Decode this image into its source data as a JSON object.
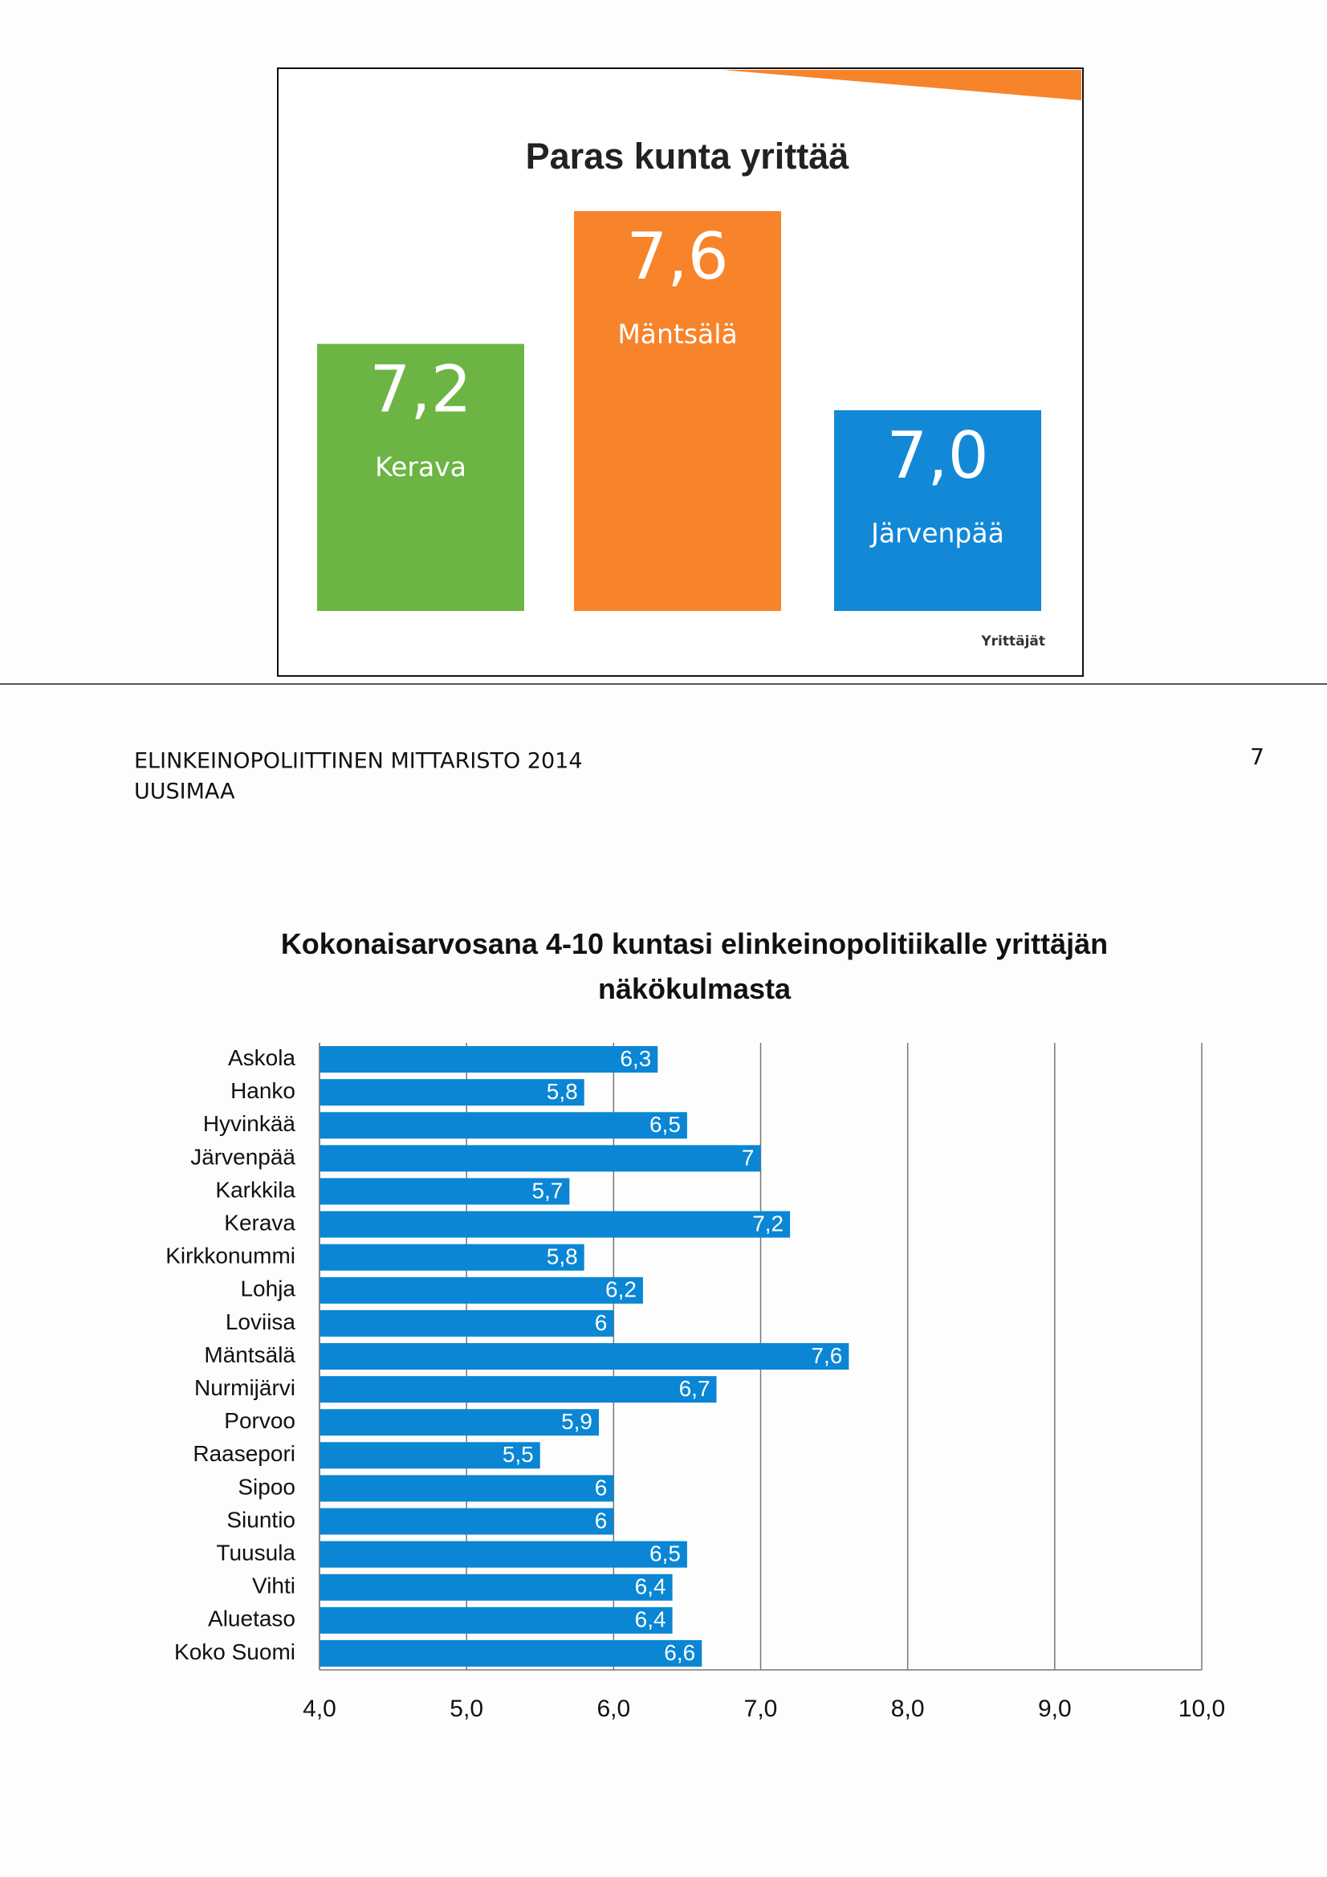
{
  "header": {
    "title": "ELINKEINOPOLIITTINEN MITTARISTO 2014",
    "subtitle": "UUSIMAA",
    "page": "7"
  },
  "logo": "Yrittäjät",
  "chart_data": [
    {
      "type": "bar",
      "title": "Paras kunta yrittää",
      "categories": [
        "Kerava",
        "Mäntsälä",
        "Järvenpää"
      ],
      "values": [
        7.2,
        7.6,
        7.0
      ],
      "value_labels": [
        "7,2",
        "7,6",
        "7,0"
      ],
      "colors": [
        "#6cb545",
        "#f7842b",
        "#1388d6"
      ]
    },
    {
      "type": "bar",
      "orientation": "horizontal",
      "title": "Kokonaisarvosana 4-10 kuntasi elinkeinopolitiikalle yrittäjän näkökulmasta",
      "categories": [
        "Askola",
        "Hanko",
        "Hyvinkää",
        "Järvenpää",
        "Karkkila",
        "Kerava",
        "Kirkkonummi",
        "Lohja",
        "Loviisa",
        "Mäntsälä",
        "Nurmijärvi",
        "Porvoo",
        "Raasepori",
        "Sipoo",
        "Siuntio",
        "Tuusula",
        "Vihti",
        "Aluetaso",
        "Koko Suomi"
      ],
      "values": [
        6.3,
        5.8,
        6.5,
        7,
        5.7,
        7.2,
        5.8,
        6.2,
        6,
        7.6,
        6.7,
        5.9,
        5.5,
        6,
        6,
        6.5,
        6.4,
        6.4,
        6.6
      ],
      "value_labels": [
        "6,3",
        "5,8",
        "6,5",
        "7",
        "5,7",
        "7,2",
        "5,8",
        "6,2",
        "6",
        "7,6",
        "6,7",
        "5,9",
        "5,5",
        "6",
        "6",
        "6,5",
        "6,4",
        "6,4",
        "6,6"
      ],
      "color": "#0a86d4",
      "xlim": [
        4,
        10
      ],
      "xticks": [
        {
          "value": 4,
          "label": "4,0"
        },
        {
          "value": 5,
          "label": "5,0"
        },
        {
          "value": 6,
          "label": "6,0"
        },
        {
          "value": 7,
          "label": "7,0"
        },
        {
          "value": 8,
          "label": "8,0"
        },
        {
          "value": 9,
          "label": "9,0"
        },
        {
          "value": 10,
          "label": "10,0"
        }
      ],
      "grid": true
    }
  ]
}
